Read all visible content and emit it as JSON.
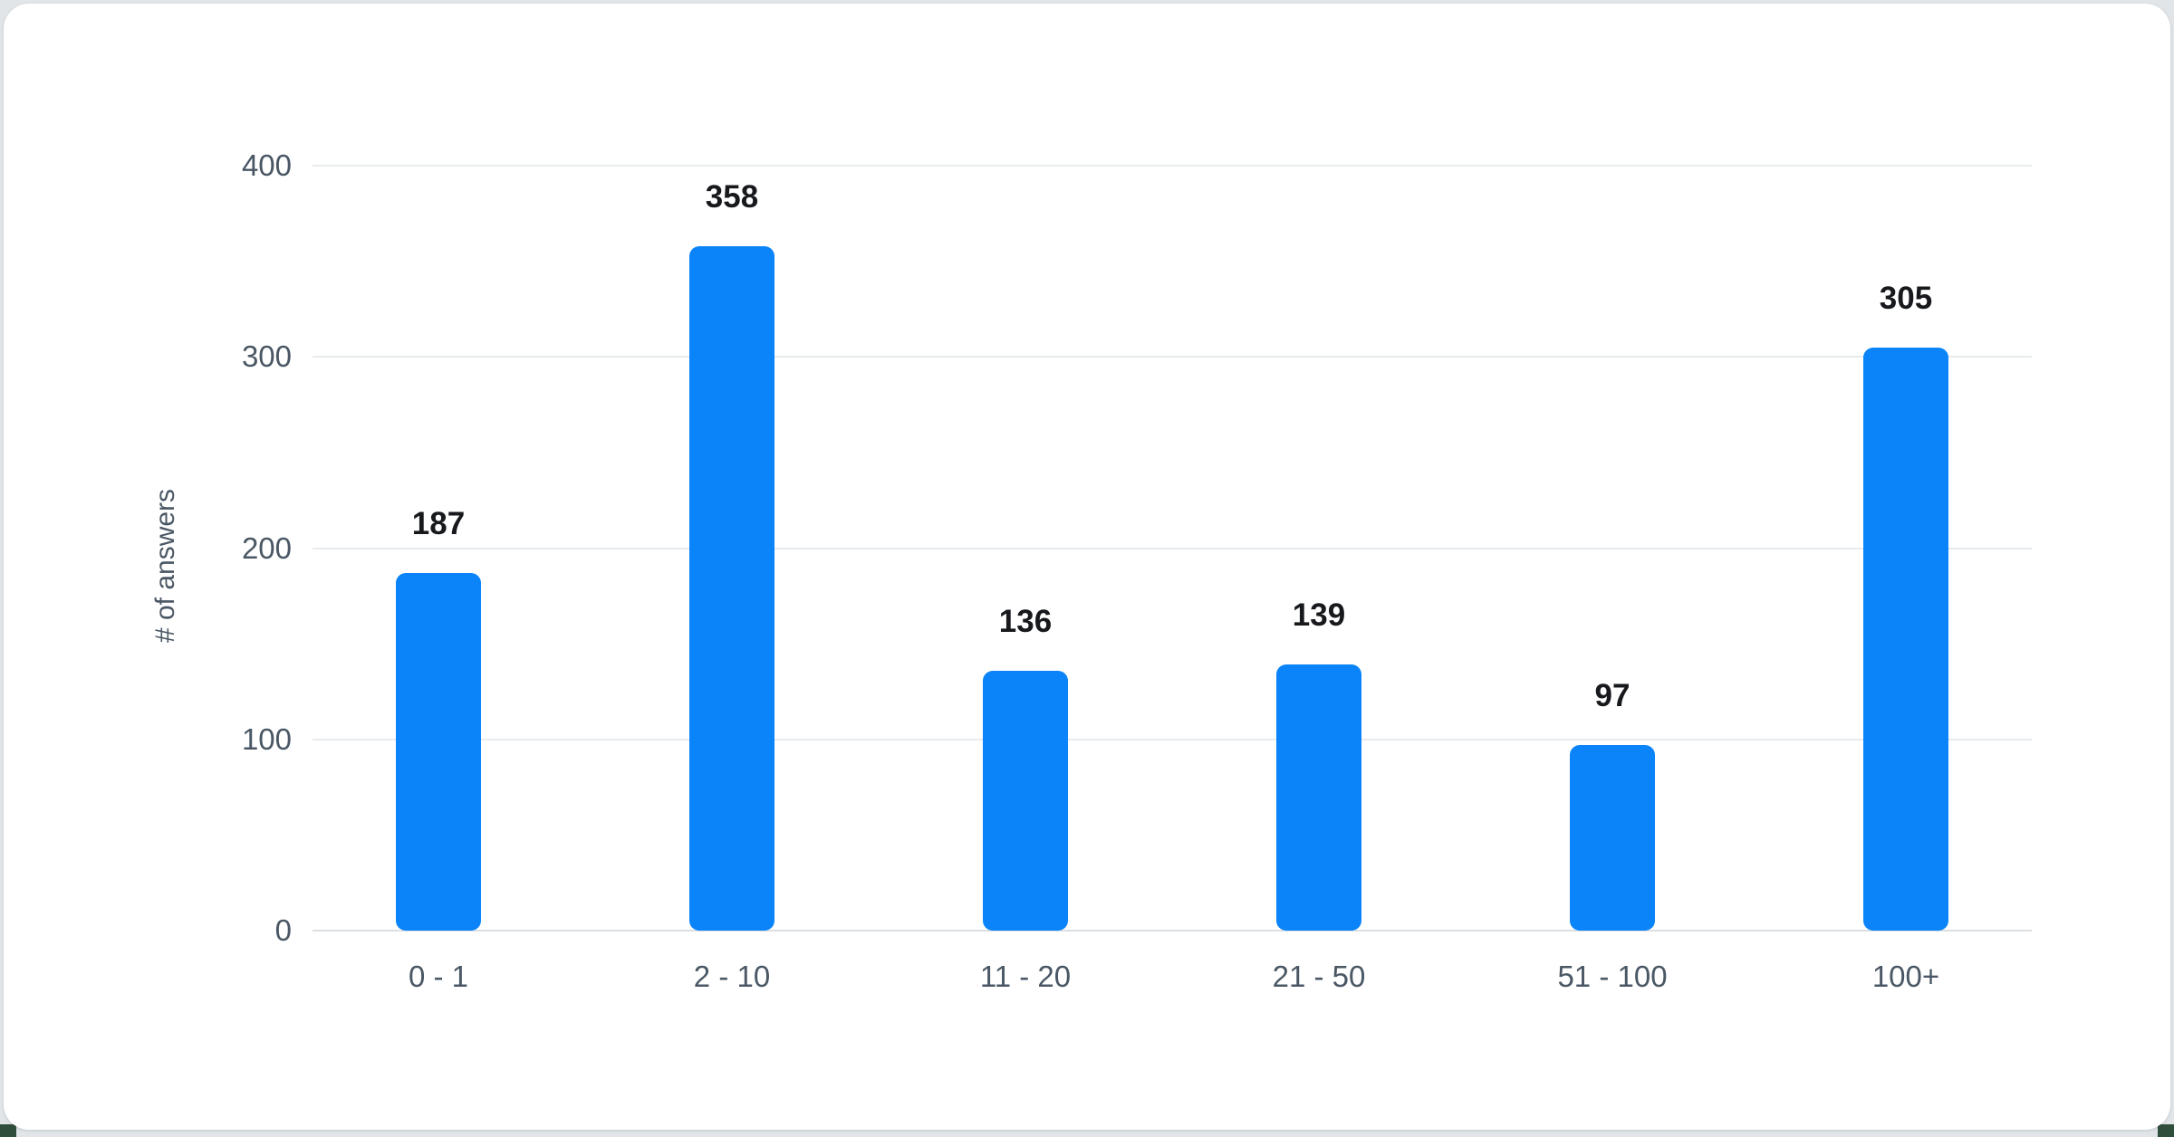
{
  "page": {
    "background_color": "#e1e5e8",
    "card_background_color": "#ffffff",
    "corner_accent_color": "#2f4e3c"
  },
  "chart_data": {
    "type": "bar",
    "categories": [
      "0 - 1",
      "2 - 10",
      "11 - 20",
      "21 - 50",
      "51 - 100",
      "100+"
    ],
    "values": [
      187,
      358,
      136,
      139,
      97,
      305
    ],
    "title": "",
    "xlabel": "",
    "ylabel": "# of answers",
    "ylim": [
      0,
      400
    ],
    "yticks": [
      0,
      100,
      200,
      300,
      400
    ],
    "grid": true,
    "legend": false,
    "show_value_labels": true,
    "bar_color": "#0a84f8",
    "tick_label_color": "#4a5764",
    "value_label_color": "#17191c",
    "gridline_color": "#e8ebee",
    "baseline_color": "#dcdfe2"
  }
}
